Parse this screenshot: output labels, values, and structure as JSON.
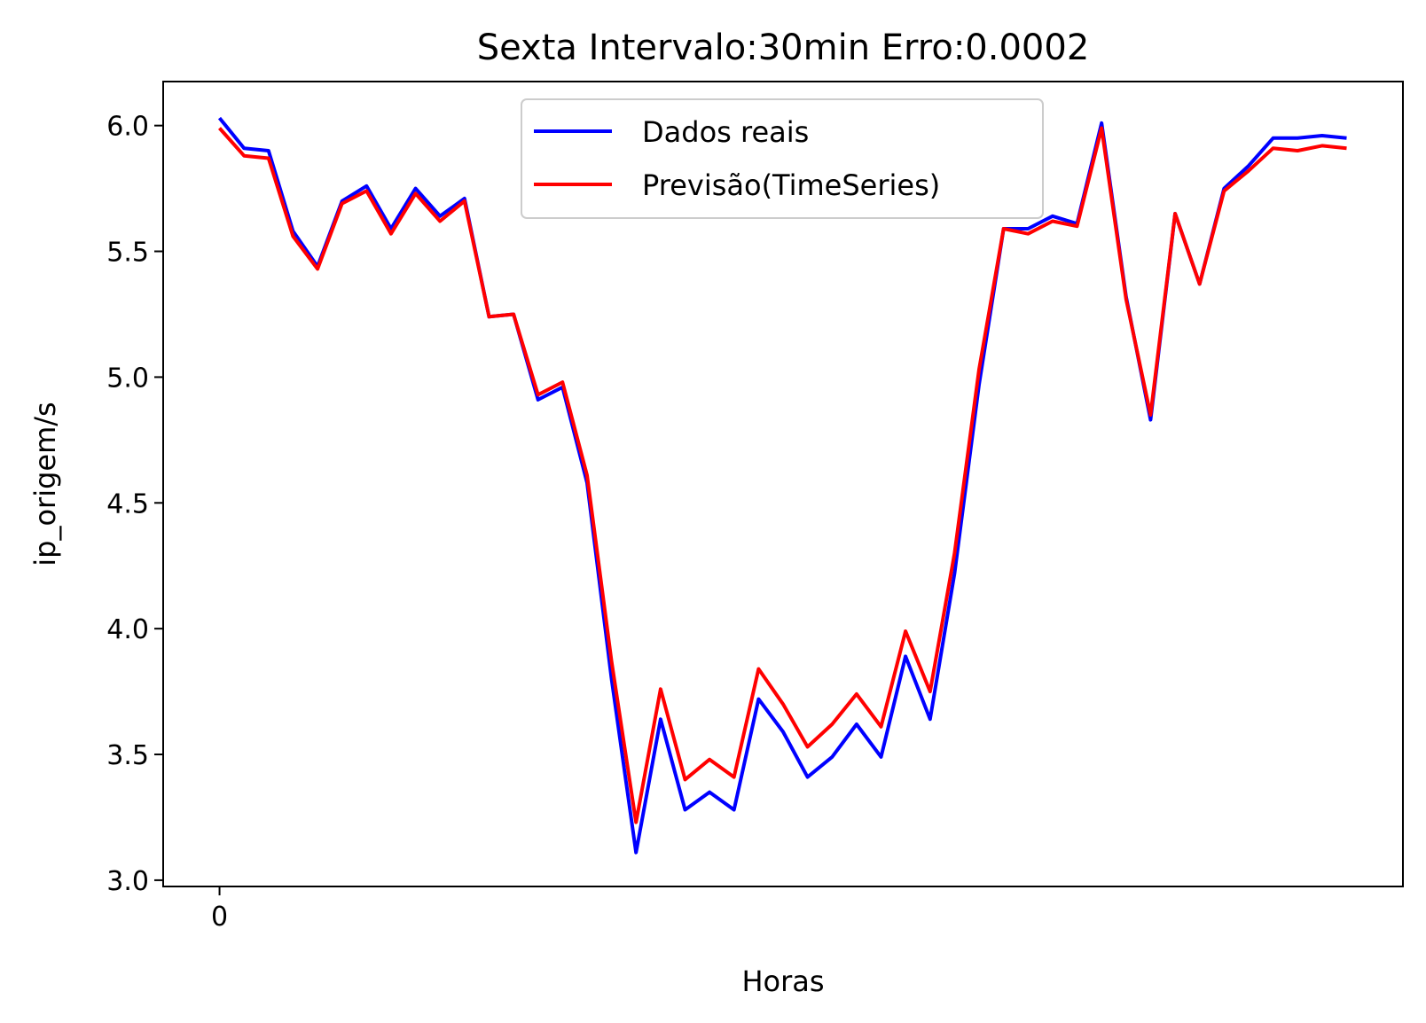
{
  "chart_data": {
    "type": "line",
    "title": "Sexta Intervalo:30min Erro:0.0002",
    "xlabel": "Horas",
    "ylabel": "ip_origem/s",
    "x_ticks": [
      {
        "value": 0,
        "label": "0"
      }
    ],
    "y_ticks": [
      {
        "value": 3.0,
        "label": "3.0"
      },
      {
        "value": 3.5,
        "label": "3.5"
      },
      {
        "value": 4.0,
        "label": "4.0"
      },
      {
        "value": 4.5,
        "label": "4.5"
      },
      {
        "value": 5.0,
        "label": "5.0"
      },
      {
        "value": 5.5,
        "label": "5.5"
      },
      {
        "value": 6.0,
        "label": "6.0"
      }
    ],
    "xlim": [
      -2.3,
      48.3
    ],
    "ylim": [
      2.975,
      6.175
    ],
    "grid": false,
    "legend_position": "top-center",
    "x": [
      0,
      1,
      2,
      3,
      4,
      5,
      6,
      7,
      8,
      9,
      10,
      11,
      12,
      13,
      14,
      15,
      16,
      17,
      18,
      19,
      20,
      21,
      22,
      23,
      24,
      25,
      26,
      27,
      28,
      29,
      30,
      31,
      32,
      33,
      34,
      35,
      36,
      37,
      38,
      39,
      40,
      41,
      42,
      43,
      44,
      45,
      46
    ],
    "series": [
      {
        "name": "Dados reais",
        "color": "#0000ff",
        "values": [
          6.03,
          5.91,
          5.9,
          5.58,
          5.44,
          5.7,
          5.76,
          5.59,
          5.75,
          5.64,
          5.71,
          5.24,
          5.25,
          4.91,
          4.96,
          4.58,
          3.8,
          3.11,
          3.64,
          3.28,
          3.35,
          3.28,
          3.72,
          3.59,
          3.41,
          3.49,
          3.62,
          3.49,
          3.89,
          3.64,
          4.22,
          4.97,
          5.59,
          5.59,
          5.64,
          5.61,
          6.01,
          5.32,
          4.83,
          5.65,
          5.37,
          5.75,
          5.84,
          5.95,
          5.95,
          5.96,
          5.95
        ]
      },
      {
        "name": "Previsão(TimeSeries)",
        "color": "#ff0000",
        "values": [
          5.99,
          5.88,
          5.87,
          5.56,
          5.43,
          5.69,
          5.74,
          5.57,
          5.73,
          5.62,
          5.7,
          5.24,
          5.25,
          4.93,
          4.98,
          4.61,
          3.87,
          3.23,
          3.76,
          3.4,
          3.48,
          3.41,
          3.84,
          3.7,
          3.53,
          3.62,
          3.74,
          3.61,
          3.99,
          3.75,
          4.3,
          5.03,
          5.59,
          5.57,
          5.62,
          5.6,
          5.99,
          5.31,
          4.85,
          5.65,
          5.37,
          5.74,
          5.82,
          5.91,
          5.9,
          5.92,
          5.91
        ]
      }
    ]
  }
}
